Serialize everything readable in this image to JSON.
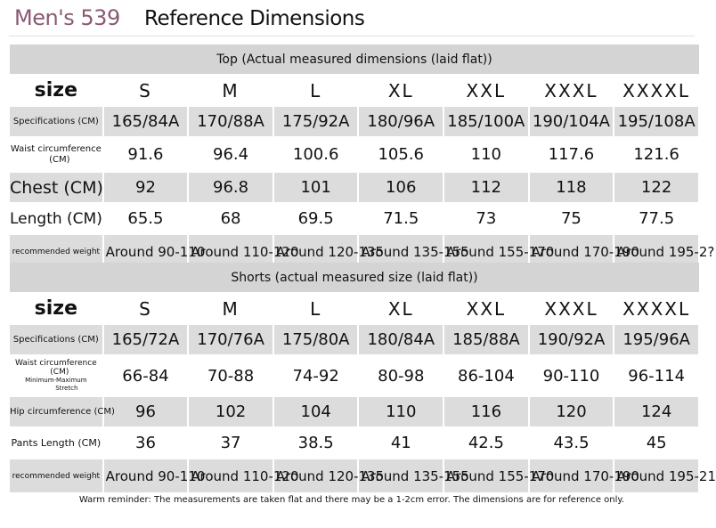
{
  "header": {
    "brand": "Men's 539",
    "title": "Reference Dimensions"
  },
  "top": {
    "title": "Top (Actual measured dimensions (laid flat))",
    "rows": [
      {
        "label": "size",
        "values": [
          "S",
          "M",
          "L",
          "XL",
          "XXL",
          "XXXL",
          "XXXXL"
        ]
      },
      {
        "label": "Specifications (CM)",
        "values": [
          "165/84A",
          "170/88A",
          "175/92A",
          "180/96A",
          "185/100A",
          "190/104A",
          "195/108A"
        ]
      },
      {
        "label_lines": [
          "Waist circumference",
          "(CM)"
        ],
        "values": [
          "91.6",
          "96.4",
          "100.6",
          "105.6",
          "110",
          "117.6",
          "121.6"
        ]
      },
      {
        "label": "Chest (CM)",
        "values": [
          "92",
          "96.8",
          "101",
          "106",
          "112",
          "118",
          "122"
        ]
      },
      {
        "label": "Length (CM)",
        "values": [
          "65.5",
          "68",
          "69.5",
          "71.5",
          "73",
          "75",
          "77.5"
        ]
      },
      {
        "label": "recommended weight",
        "values": [
          "Around 90-110",
          "Around 110-120",
          "Around 120-135",
          "Around 135-155",
          "Around 155-170",
          "Around 170-190",
          "Around 195-2?"
        ]
      }
    ]
  },
  "shorts": {
    "title": "Shorts (actual measured size (laid flat))",
    "rows": [
      {
        "label": "size",
        "values": [
          "S",
          "M",
          "L",
          "XL",
          "XXL",
          "XXXL",
          "XXXXL"
        ]
      },
      {
        "label": "Specifications (CM)",
        "values": [
          "165/72A",
          "170/76A",
          "175/80A",
          "180/84A",
          "185/88A",
          "190/92A",
          "195/96A"
        ]
      },
      {
        "label_lines": [
          "Waist circumference",
          "(CM)",
          "Minimum-Maximum",
          "Stretch"
        ],
        "values": [
          "66-84",
          "70-88",
          "74-92",
          "80-98",
          "86-104",
          "90-110",
          "96-114"
        ]
      },
      {
        "label": "Hip circumference (CM)",
        "values": [
          "96",
          "102",
          "104",
          "110",
          "116",
          "120",
          "124"
        ]
      },
      {
        "label": "Pants Length (CM)",
        "values": [
          "36",
          "37",
          "38.5",
          "41",
          "42.5",
          "43.5",
          "45"
        ]
      },
      {
        "label": "recommended weight",
        "values": [
          "Around 90-110",
          "Around 110-120",
          "Around 120-135",
          "Around 135-155",
          "Around 155-170",
          "Around 170-190",
          "Around 195-21"
        ]
      }
    ]
  },
  "footer": "Warm reminder: The measurements are taken flat and there may be a 1-2cm error. The dimensions are for reference only."
}
